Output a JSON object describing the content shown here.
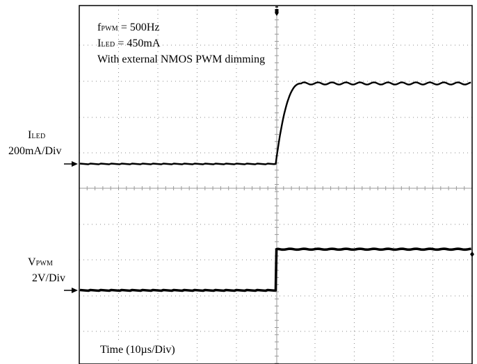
{
  "chart_data": {
    "type": "line",
    "title": "",
    "annotations": {
      "f_symbol": "f",
      "f_sub": "PWM",
      "f_value": " = 500Hz",
      "i_symbol": "I",
      "i_sub": "LED",
      "i_value": " = 450mA",
      "note": "With external NMOS PWM dimming"
    },
    "xlabel": "Time (10µs/Div)",
    "x_divisions": 10,
    "grid": true,
    "step_time_div": 5.0,
    "series": [
      {
        "name_symbol": "I",
        "name_sub": "LED",
        "scale": "200mA/Div",
        "units": "mA",
        "low": 0,
        "high": 450,
        "rise_time_div": 0.65,
        "color": "#000000"
      },
      {
        "name_symbol": "V",
        "name_sub": "PWM",
        "scale": "2V/Div",
        "units": "V",
        "low": 0,
        "high": 5,
        "rise_time_div": 0.02,
        "color": "#000000"
      }
    ]
  }
}
